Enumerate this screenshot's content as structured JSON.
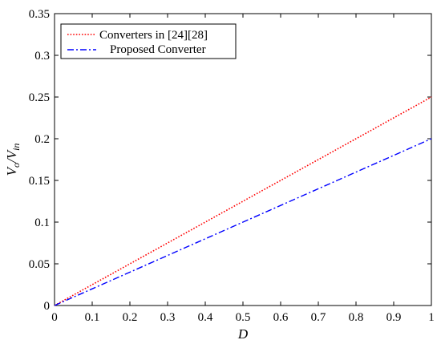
{
  "chart_data": {
    "type": "line",
    "title": "",
    "xlabel": "D",
    "ylabel": {
      "main": "V",
      "sub1": "o",
      "sep": "/V",
      "sub2": "in"
    },
    "xlim": [
      0,
      1
    ],
    "ylim": [
      0,
      0.35
    ],
    "x_ticks": [
      "0",
      "0.1",
      "0.2",
      "0.3",
      "0.4",
      "0.5",
      "0.6",
      "0.7",
      "0.8",
      "0.9",
      "1"
    ],
    "y_ticks": [
      "0",
      "0.05",
      "0.1",
      "0.15",
      "0.2",
      "0.25",
      "0.3",
      "0.35"
    ],
    "grid": false,
    "legend_position": "top-left",
    "series": [
      {
        "name": "Converters in [24][28]",
        "color": "#ff0000",
        "style": "dotted",
        "x": [
          0,
          0.1,
          0.2,
          0.3,
          0.4,
          0.5,
          0.6,
          0.7,
          0.8,
          0.9,
          1
        ],
        "y": [
          0,
          0.025,
          0.05,
          0.075,
          0.1,
          0.125,
          0.15,
          0.175,
          0.2,
          0.225,
          0.25
        ]
      },
      {
        "name": "Proposed Converter",
        "color": "#0000ff",
        "style": "dashdot",
        "x": [
          0,
          0.1,
          0.2,
          0.3,
          0.4,
          0.5,
          0.6,
          0.7,
          0.8,
          0.9,
          1
        ],
        "y": [
          0,
          0.02,
          0.04,
          0.06,
          0.08,
          0.1,
          0.12,
          0.14,
          0.16,
          0.18,
          0.2
        ]
      }
    ]
  }
}
